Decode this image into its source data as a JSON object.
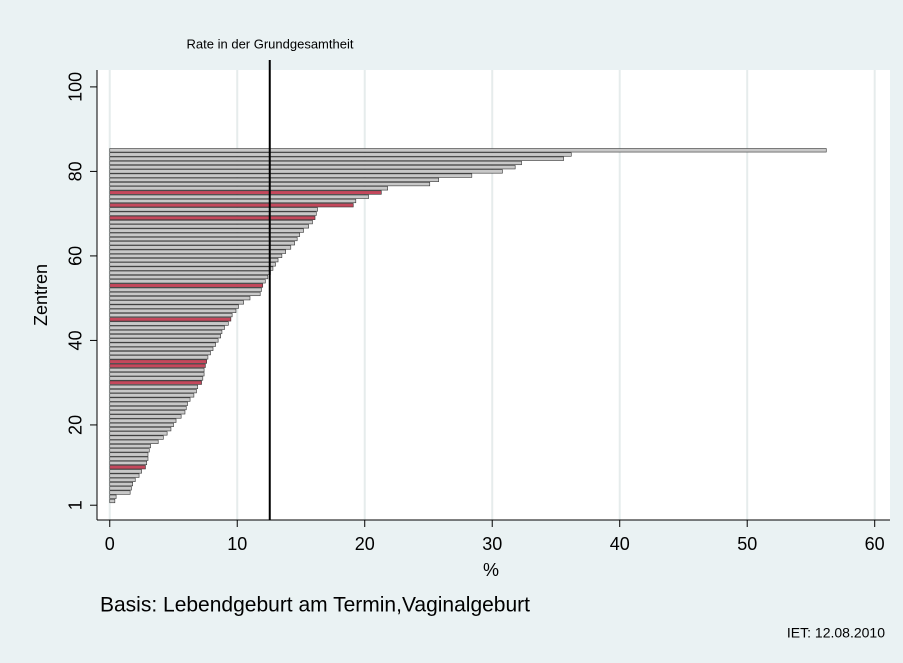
{
  "chart_data": {
    "type": "barh",
    "title": "Rate in der Grundgesamtheit",
    "xlabel": "%",
    "ylabel": "Zentren",
    "note": "Basis: Lebendgeburt am Termin,Vaginalgeburt",
    "footer": "IET: 12.08.2010",
    "reference_line": 12.55,
    "y": [
      1,
      2,
      3,
      4,
      5,
      6,
      7,
      8,
      9,
      10,
      11,
      12,
      13,
      14,
      15,
      16,
      17,
      18,
      19,
      20,
      21,
      22,
      23,
      24,
      25,
      26,
      27,
      28,
      29,
      30,
      31,
      32,
      33,
      34,
      35,
      36,
      37,
      38,
      39,
      40,
      41,
      42,
      43,
      44,
      45,
      46,
      47,
      48,
      49,
      50,
      51,
      52,
      53,
      54,
      55,
      56,
      57,
      58,
      59,
      60,
      61,
      62,
      63,
      64,
      65,
      66,
      67,
      68,
      69,
      70,
      71,
      72,
      73,
      74,
      75,
      76,
      77,
      78,
      79,
      80,
      81,
      82,
      83,
      84,
      85
    ],
    "values": [
      0.0,
      0.4,
      0.5,
      1.6,
      1.7,
      1.8,
      2.0,
      2.3,
      2.5,
      2.8,
      2.9,
      3.0,
      3.0,
      3.1,
      3.2,
      3.8,
      4.2,
      4.5,
      4.8,
      5.0,
      5.2,
      5.6,
      5.9,
      6.0,
      6.1,
      6.3,
      6.6,
      6.8,
      6.9,
      7.2,
      7.3,
      7.4,
      7.4,
      7.5,
      7.6,
      7.7,
      7.9,
      8.1,
      8.3,
      8.5,
      8.7,
      8.8,
      9.0,
      9.3,
      9.5,
      9.6,
      9.9,
      10.1,
      10.5,
      11.0,
      11.8,
      11.9,
      12.0,
      12.2,
      12.4,
      12.6,
      12.8,
      13.0,
      13.2,
      13.5,
      13.8,
      14.2,
      14.5,
      14.7,
      14.9,
      15.2,
      15.6,
      15.9,
      16.1,
      16.2,
      16.3,
      19.1,
      19.3,
      20.3,
      21.3,
      21.8,
      25.1,
      25.8,
      28.4,
      30.8,
      31.8,
      32.3,
      35.6,
      36.2,
      56.2
    ],
    "colors": [
      "#c8c8c8",
      "#c8c8c8",
      "#c8c8c8",
      "#c8c8c8",
      "#c8c8c8",
      "#c8c8c8",
      "#c8c8c8",
      "#c8c8c8",
      "#c8c8c8",
      "#c4485c",
      "#c8c8c8",
      "#c8c8c8",
      "#c8c8c8",
      "#c8c8c8",
      "#c8c8c8",
      "#c8c8c8",
      "#c8c8c8",
      "#c8c8c8",
      "#c8c8c8",
      "#c8c8c8",
      "#c8c8c8",
      "#c8c8c8",
      "#c8c8c8",
      "#c8c8c8",
      "#c8c8c8",
      "#c8c8c8",
      "#c8c8c8",
      "#c8c8c8",
      "#c8c8c8",
      "#c4485c",
      "#c8c8c8",
      "#c8c8c8",
      "#c8c8c8",
      "#c4485c",
      "#c4485c",
      "#c8c8c8",
      "#c8c8c8",
      "#c8c8c8",
      "#c8c8c8",
      "#c8c8c8",
      "#c8c8c8",
      "#c8c8c8",
      "#c8c8c8",
      "#c8c8c8",
      "#c4485c",
      "#c8c8c8",
      "#c8c8c8",
      "#c8c8c8",
      "#c8c8c8",
      "#c8c8c8",
      "#c8c8c8",
      "#c8c8c8",
      "#c4485c",
      "#c8c8c8",
      "#c8c8c8",
      "#c8c8c8",
      "#c8c8c8",
      "#c8c8c8",
      "#c8c8c8",
      "#c8c8c8",
      "#c8c8c8",
      "#c8c8c8",
      "#c8c8c8",
      "#c8c8c8",
      "#c8c8c8",
      "#c8c8c8",
      "#c8c8c8",
      "#c8c8c8",
      "#c4485c",
      "#c8c8c8",
      "#c8c8c8",
      "#c4485c",
      "#c8c8c8",
      "#c8c8c8",
      "#c4485c",
      "#c8c8c8",
      "#c8c8c8",
      "#c8c8c8",
      "#c8c8c8",
      "#c8c8c8",
      "#c8c8c8",
      "#c8c8c8",
      "#c8c8c8",
      "#c8c8c8",
      "#c8c8c8"
    ],
    "xlim": [
      -1,
      61.2
    ],
    "xticks": [
      0,
      10,
      20,
      30,
      40,
      50,
      60
    ],
    "ylim": [
      -2.5,
      104
    ],
    "yticks": [
      1,
      20,
      40,
      60,
      80,
      100
    ],
    "grid": true
  }
}
